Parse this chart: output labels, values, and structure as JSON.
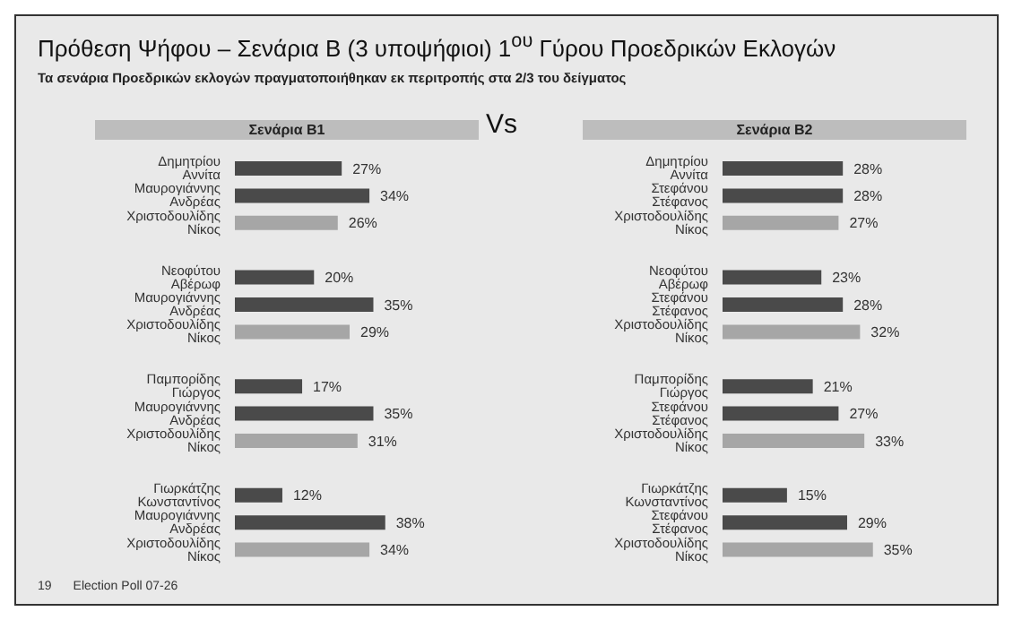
{
  "chart_data": [
    {
      "type": "bar",
      "orientation": "horizontal",
      "title": "Σενάρια Β1",
      "annotations": [
        "Πρόθεση Ψήφου – Σενάρια Β (3 υποψήφιοι) 1$^{ου}$ Γύρου Προεδρικών Εκλογών",
        "Τα σενάρια Προεδρικών εκλογών πραγματοποιήθηκαν εκ περιτροπής στα 2/3 του δείγματος",
        "Vs",
        "19",
        "Election Poll 07-26"
      ],
      "categories": [
        "Δημητρίου Αννίτα",
        "Μαυρογιάννης Ανδρέας",
        "Χριστοδουλίδης Νίκος",
        null,
        "Νεοφύτου Αβέρωφ",
        "Μαυρογιάννης Ανδρέας",
        "Χριστοδουλίδης Νίκος",
        null,
        "Παμπορίδης Γιώργος",
        "Μαυρογιάννης Ανδρέας",
        "Χριστοδουλίδης Νίκος",
        null,
        "Γιωρκάτζης Κωνσταντίνος",
        "Μαυρογιάννης Ανδρέας",
        "Χριστοδουλίδης Νίκος"
      ],
      "values": [
        27,
        34,
        26,
        null,
        20,
        35,
        29,
        null,
        17,
        35,
        31,
        null,
        12,
        38,
        34
      ],
      "value_labels": [
        "27%",
        "34%",
        "26%",
        null,
        "20%",
        "35%",
        "29%",
        null,
        "17%",
        "35%",
        "31%",
        null,
        "12%",
        "38%",
        "34%"
      ],
      "colors": [
        "#4a4a4a",
        "#4a4a4a",
        "#a6a6a6",
        "#4a4a4a",
        "#4a4a4a",
        "#4a4a4a",
        "#a6a6a6",
        "#4a4a4a",
        "#4a4a4a",
        "#4a4a4a",
        "#a6a6a6",
        "#4a4a4a",
        "#4a4a4a",
        "#4a4a4a",
        "#a6a6a6"
      ],
      "tick_labels": "y",
      "grid": false,
      "legend": false
    },
    {
      "type": "bar",
      "orientation": "horizontal",
      "title": "Σενάρια Β2",
      "categories": [
        "Δημητρίου Αννίτα",
        "Στεφάνου Στέφανος",
        "Χριστοδουλίδης Νίκος",
        null,
        "Νεοφύτου Αβέρωφ",
        "Στεφάνου Στέφανος",
        "Χριστοδουλίδης Νίκος",
        null,
        "Παμπορίδης Γιώργος",
        "Στεφάνου Στέφανος",
        "Χριστοδουλίδης Νίκος",
        null,
        "Γιωρκάτζης Κωνσταντίνος",
        "Στεφάνου Στέφανος",
        "Χριστοδουλίδης Νίκος"
      ],
      "values": [
        28,
        28,
        27,
        null,
        23,
        28,
        32,
        null,
        21,
        27,
        33,
        null,
        15,
        29,
        35
      ],
      "value_labels": [
        "28%",
        "28%",
        "27%",
        null,
        "23%",
        "28%",
        "32%",
        null,
        "21%",
        "27%",
        "33%",
        null,
        "15%",
        "29%",
        "35%"
      ],
      "colors": [
        "#4a4a4a",
        "#4a4a4a",
        "#a6a6a6",
        "#4a4a4a",
        "#4a4a4a",
        "#4a4a4a",
        "#a6a6a6",
        "#4a4a4a",
        "#4a4a4a",
        "#4a4a4a",
        "#a6a6a6",
        "#4a4a4a",
        "#4a4a4a",
        "#4a4a4a",
        "#a6a6a6"
      ],
      "tick_labels": "y",
      "grid": false,
      "legend": false
    }
  ]
}
